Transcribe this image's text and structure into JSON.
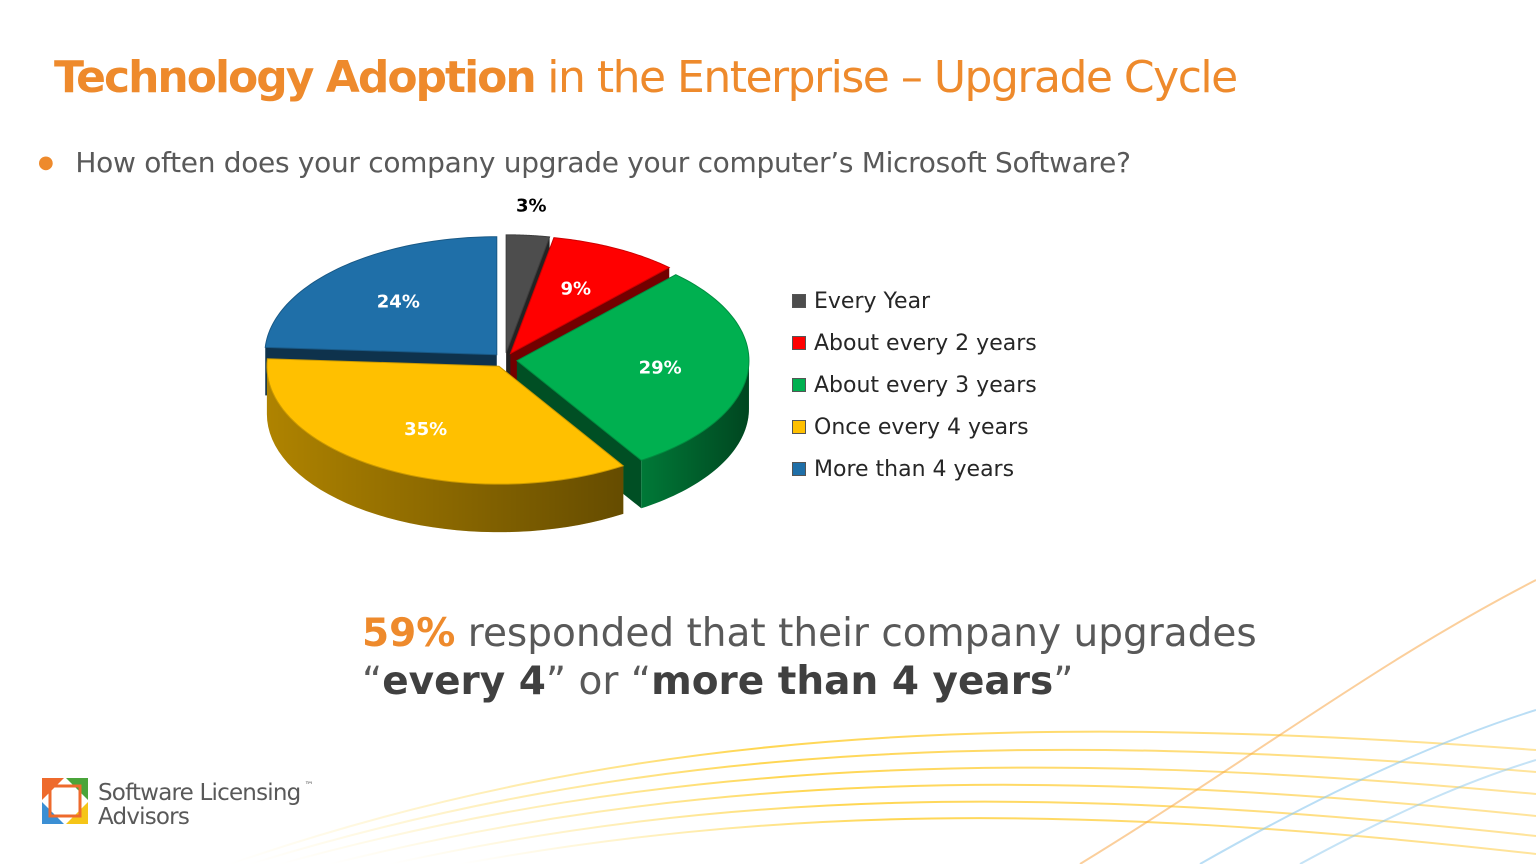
{
  "title": {
    "bold": "Technology Adoption",
    "rest": "in the Enterprise – Upgrade Cycle"
  },
  "bullet": "How often does your company upgrade your computer’s Microsoft Software?",
  "chart_data": {
    "type": "pie",
    "title": "",
    "categories": [
      "Every Year",
      "About every 2 years",
      "About every 3 years",
      "Once every 4 years",
      "More than 4 years"
    ],
    "values": [
      3,
      9,
      29,
      35,
      24
    ],
    "labels": [
      "3%",
      "9%",
      "29%",
      "35%",
      "24%"
    ],
    "colors": [
      "#4d4d4d",
      "#ff0000",
      "#00b050",
      "#ffc000",
      "#1f6fa8"
    ],
    "style": "3d-exploded",
    "legend": "right"
  },
  "statement": {
    "highlight": "59%",
    "line1": "responded that their company upgrades",
    "open_quote": "“",
    "close_quote": "”",
    "or": "or",
    "emph1": "every 4",
    "emph2": "more than 4 years"
  },
  "logo": {
    "line1": "Software Licensing",
    "line2": "Advisors",
    "tm": "™"
  }
}
